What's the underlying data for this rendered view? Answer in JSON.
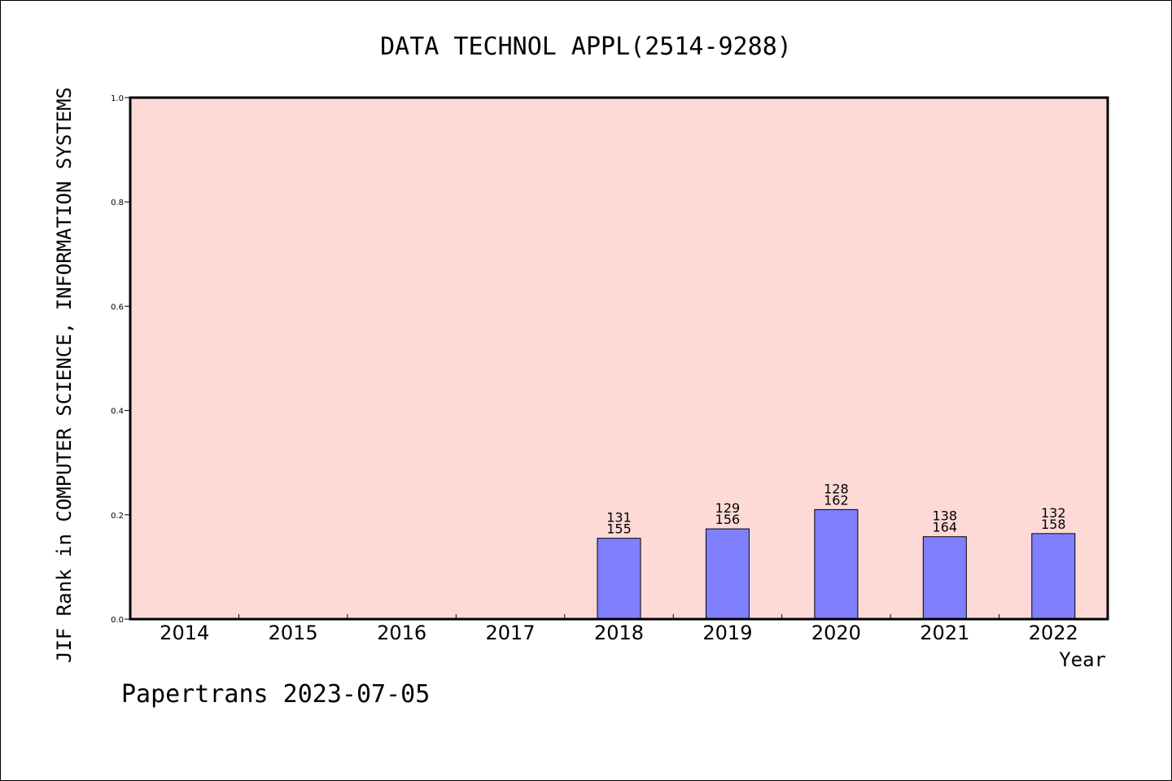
{
  "chart_data": {
    "type": "bar",
    "title": "DATA TECHNOL APPL(2514-9288)",
    "ylabel": "JIF Rank in COMPUTER SCIENCE, INFORMATION SYSTEMS",
    "xlabel": "Year",
    "categories": [
      "2014",
      "2015",
      "2016",
      "2017",
      "2018",
      "2019",
      "2020",
      "2021",
      "2022"
    ],
    "values": [
      null,
      null,
      null,
      null,
      0.155,
      0.173,
      0.21,
      0.158,
      0.164
    ],
    "bar_labels": [
      null,
      null,
      null,
      null,
      [
        "131",
        "155"
      ],
      [
        "129",
        "156"
      ],
      [
        "128",
        "162"
      ],
      [
        "138",
        "164"
      ],
      [
        "132",
        "158"
      ]
    ],
    "ylim": [
      0,
      1.0
    ],
    "yticks": [
      "0.0",
      "0.2",
      "0.4",
      "0.6",
      "0.8",
      "1.0"
    ],
    "grid": false,
    "colors": {
      "plot_background": "#fddad6",
      "bar_fill": "#8080ff",
      "bar_stroke": "#000000"
    }
  },
  "footer": {
    "text": "Papertrans 2023-07-05"
  }
}
